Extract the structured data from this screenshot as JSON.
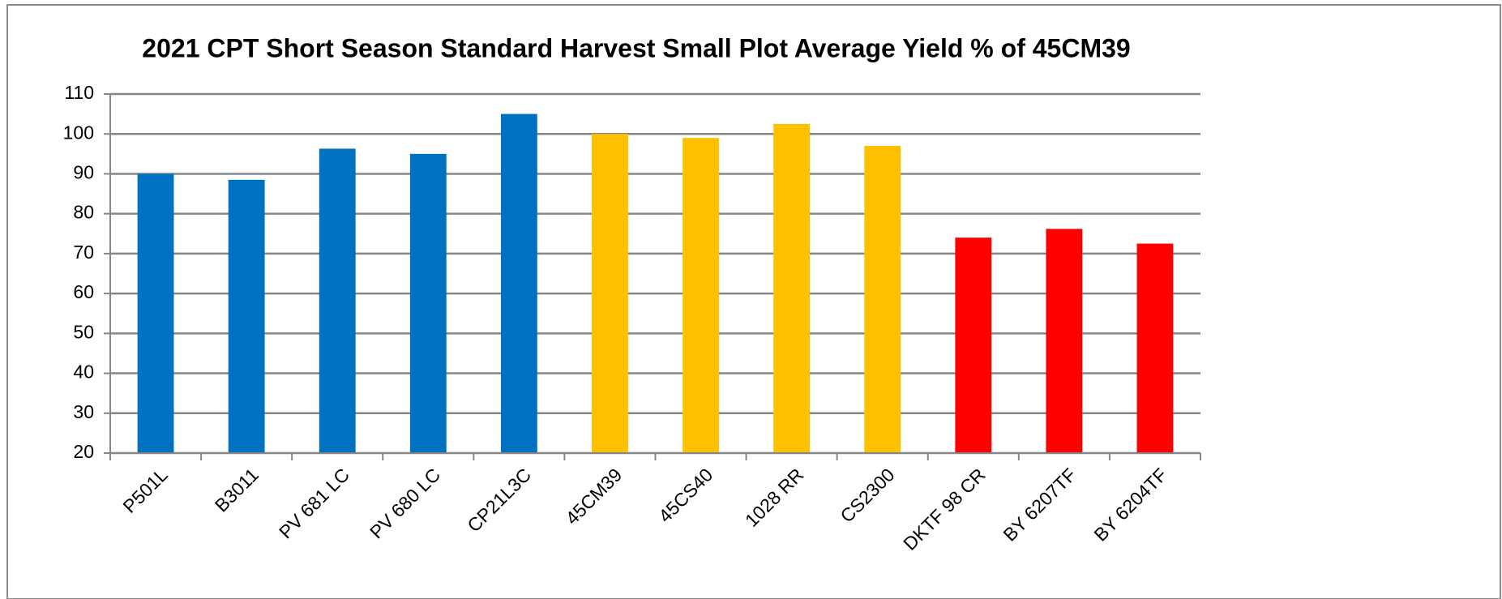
{
  "chart_data": {
    "type": "bar",
    "title": "2021 CPT Short Season Standard Harvest Small Plot Average Yield % of 45CM39",
    "categories": [
      "P501L",
      "B3011",
      "PV 681 LC",
      "PV 680 LC",
      "CP21L3C",
      "45CM39",
      "45CS40",
      "1028 RR",
      "CS2300",
      "DKTF 98 CR",
      "BY 6207TF",
      "BY 6204TF"
    ],
    "values": [
      90,
      88.5,
      96.3,
      95,
      105,
      100,
      99,
      102.5,
      97,
      74,
      76.2,
      72.5
    ],
    "colors": [
      "#0070c0",
      "#0070c0",
      "#0070c0",
      "#0070c0",
      "#0070c0",
      "#ffc000",
      "#ffc000",
      "#ffc000",
      "#ffc000",
      "#ff0000",
      "#ff0000",
      "#ff0000"
    ],
    "ylim": [
      20,
      110
    ],
    "yticks": [
      20,
      30,
      40,
      50,
      60,
      70,
      80,
      90,
      100,
      110
    ],
    "grid": true
  }
}
